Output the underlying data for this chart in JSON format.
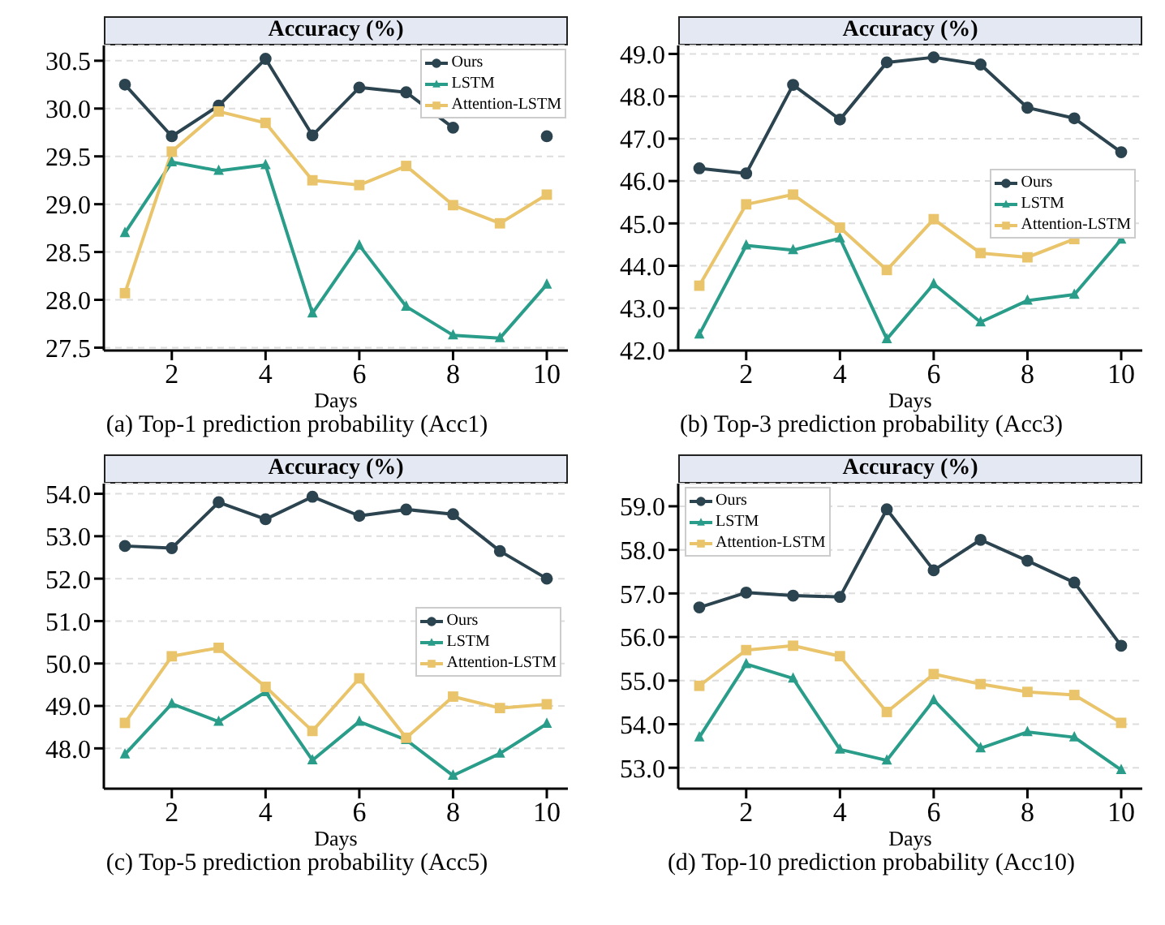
{
  "chart_data": [
    {
      "type": "line",
      "title": "Accuracy (%)",
      "xlabel": "Days",
      "annotations": [
        "(a) Top-1 prediction probability (Acc1)"
      ],
      "x": [
        1,
        2,
        3,
        4,
        5,
        6,
        7,
        8,
        9,
        10
      ],
      "xlim": [
        0.55,
        10.45
      ],
      "xticks": [
        2,
        4,
        6,
        8,
        10
      ],
      "ylim": [
        27.47,
        30.66
      ],
      "yticks": [
        {
          "value": 27.5,
          "label": "27.5"
        },
        {
          "value": 28,
          "label": "28.0"
        },
        {
          "value": 28.5,
          "label": "28.5"
        },
        {
          "value": 29,
          "label": "29.0"
        },
        {
          "value": 29.5,
          "label": "29.5"
        },
        {
          "value": 30,
          "label": "30.0"
        },
        {
          "value": 30.5,
          "label": "30.5"
        }
      ],
      "grid": "y",
      "legend": "top right",
      "series": [
        {
          "name": "Ours",
          "color": "#2b4450",
          "marker": "circle",
          "values": [
            30.25,
            29.71,
            30.03,
            30.52,
            29.72,
            30.22,
            30.17,
            29.8,
            null,
            29.71
          ]
        },
        {
          "name": "LSTM",
          "color": "#2a9d8a",
          "marker": "triangle",
          "values": [
            28.7,
            29.44,
            29.35,
            29.41,
            27.86,
            28.57,
            27.93,
            27.63,
            27.6,
            28.16
          ]
        },
        {
          "name": "Attention-LSTM",
          "color": "#e9c46a",
          "marker": "square",
          "values": [
            28.07,
            29.55,
            29.97,
            29.85,
            29.25,
            29.2,
            29.4,
            28.99,
            28.8,
            29.1
          ]
        }
      ]
    },
    {
      "type": "line",
      "title": "Accuracy (%)",
      "xlabel": "Days",
      "annotations": [
        "(b) Top-3 prediction probability (Acc3)"
      ],
      "x": [
        1,
        2,
        3,
        4,
        5,
        6,
        7,
        8,
        9,
        10
      ],
      "xlim": [
        0.55,
        10.45
      ],
      "xticks": [
        2,
        4,
        6,
        8,
        10
      ],
      "ylim": [
        42,
        49.2
      ],
      "yticks": [
        {
          "value": 42,
          "label": "42.0"
        },
        {
          "value": 43,
          "label": "43.0"
        },
        {
          "value": 44,
          "label": "44.0"
        },
        {
          "value": 45,
          "label": "45.0"
        },
        {
          "value": 46,
          "label": "46.0"
        },
        {
          "value": 47,
          "label": "47.0"
        },
        {
          "value": 48,
          "label": "48.0"
        },
        {
          "value": 49,
          "label": "49.0"
        }
      ],
      "grid": "y",
      "legend": "right",
      "series": [
        {
          "name": "Ours",
          "color": "#2b4450",
          "marker": "circle",
          "values": [
            46.3,
            46.18,
            48.27,
            47.45,
            48.8,
            48.92,
            48.75,
            47.73,
            47.48,
            46.68
          ]
        },
        {
          "name": "LSTM",
          "color": "#2a9d8a",
          "marker": "triangle",
          "values": [
            42.38,
            44.48,
            44.37,
            44.65,
            42.27,
            43.57,
            42.67,
            43.18,
            43.32,
            44.62
          ]
        },
        {
          "name": "Attention-LSTM",
          "color": "#e9c46a",
          "marker": "square",
          "values": [
            43.53,
            45.45,
            45.68,
            44.9,
            43.9,
            45.1,
            44.3,
            44.2,
            44.63,
            null
          ]
        }
      ]
    },
    {
      "type": "line",
      "title": "Accuracy (%)",
      "xlabel": "Days",
      "annotations": [
        "(c) Top-5 prediction probability (Acc5)"
      ],
      "x": [
        1,
        2,
        3,
        4,
        5,
        6,
        7,
        8,
        9,
        10
      ],
      "xlim": [
        0.55,
        10.45
      ],
      "xticks": [
        2,
        4,
        6,
        8,
        10
      ],
      "ylim": [
        47.05,
        54.24
      ],
      "yticks": [
        {
          "value": 48,
          "label": "48.0"
        },
        {
          "value": 49,
          "label": "49.0"
        },
        {
          "value": 50,
          "label": "50.0"
        },
        {
          "value": 51,
          "label": "51.0"
        },
        {
          "value": 52,
          "label": "52.0"
        },
        {
          "value": 53,
          "label": "53.0"
        },
        {
          "value": 54,
          "label": "54.0"
        }
      ],
      "grid": "y",
      "legend": "right",
      "series": [
        {
          "name": "Ours",
          "color": "#2b4450",
          "marker": "circle",
          "values": [
            52.77,
            52.72,
            53.8,
            53.4,
            53.93,
            53.48,
            53.63,
            53.52,
            52.65,
            52.0
          ]
        },
        {
          "name": "LSTM",
          "color": "#2a9d8a",
          "marker": "triangle",
          "values": [
            47.86,
            49.05,
            48.63,
            49.33,
            47.72,
            48.63,
            48.2,
            47.36,
            47.88,
            48.58
          ]
        },
        {
          "name": "Attention-LSTM",
          "color": "#e9c46a",
          "marker": "square",
          "values": [
            48.6,
            50.17,
            50.37,
            49.45,
            48.41,
            49.65,
            48.25,
            49.22,
            48.95,
            49.04
          ]
        }
      ]
    },
    {
      "type": "line",
      "title": "Accuracy (%)",
      "xlabel": "Days",
      "annotations": [
        "(d) Top-10 prediction probability (Acc10)"
      ],
      "x": [
        1,
        2,
        3,
        4,
        5,
        6,
        7,
        8,
        9,
        10
      ],
      "xlim": [
        0.55,
        10.45
      ],
      "xticks": [
        2,
        4,
        6,
        8,
        10
      ],
      "ylim": [
        52.52,
        59.52
      ],
      "yticks": [
        {
          "value": 53,
          "label": "53.0"
        },
        {
          "value": 54,
          "label": "54.0"
        },
        {
          "value": 55,
          "label": "55.0"
        },
        {
          "value": 56,
          "label": "56.0"
        },
        {
          "value": 57,
          "label": "57.0"
        },
        {
          "value": 58,
          "label": "58.0"
        },
        {
          "value": 59,
          "label": "59.0"
        }
      ],
      "grid": "y",
      "legend": "top left",
      "series": [
        {
          "name": "Ours",
          "color": "#2b4450",
          "marker": "circle",
          "values": [
            56.68,
            57.02,
            56.95,
            56.92,
            58.93,
            57.53,
            58.23,
            57.75,
            57.25,
            55.8
          ]
        },
        {
          "name": "LSTM",
          "color": "#2a9d8a",
          "marker": "triangle",
          "values": [
            53.7,
            55.38,
            55.05,
            53.42,
            53.17,
            54.55,
            53.45,
            53.82,
            53.7,
            52.95
          ]
        },
        {
          "name": "Attention-LSTM",
          "color": "#e9c46a",
          "marker": "square",
          "values": [
            54.88,
            55.7,
            55.8,
            55.56,
            54.28,
            55.15,
            54.92,
            54.74,
            54.67,
            54.03
          ]
        }
      ]
    }
  ]
}
